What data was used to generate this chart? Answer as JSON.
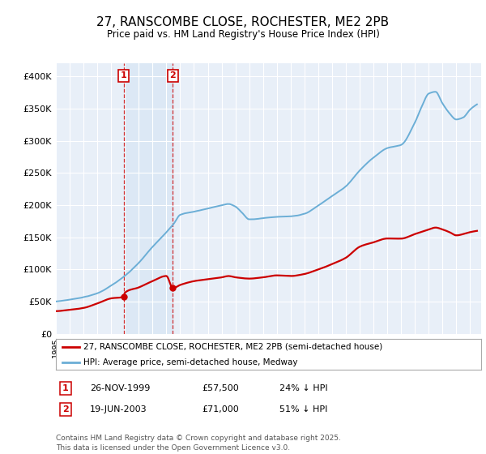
{
  "title": "27, RANSCOMBE CLOSE, ROCHESTER, ME2 2PB",
  "subtitle": "Price paid vs. HM Land Registry's House Price Index (HPI)",
  "ylabel_ticks": [
    "£0",
    "£50K",
    "£100K",
    "£150K",
    "£200K",
    "£250K",
    "£300K",
    "£350K",
    "£400K"
  ],
  "ytick_values": [
    0,
    50000,
    100000,
    150000,
    200000,
    250000,
    300000,
    350000,
    400000
  ],
  "ylim": [
    0,
    420000
  ],
  "xlim_start": 1995.0,
  "xlim_end": 2025.8,
  "hpi_color": "#6baed6",
  "price_color": "#cc0000",
  "marker1_date": 1999.9,
  "marker1_price": 57500,
  "marker2_date": 2003.47,
  "marker2_price": 71000,
  "legend_label1": "27, RANSCOMBE CLOSE, ROCHESTER, ME2 2PB (semi-detached house)",
  "legend_label2": "HPI: Average price, semi-detached house, Medway",
  "table_row1": [
    "1",
    "26-NOV-1999",
    "£57,500",
    "24% ↓ HPI"
  ],
  "table_row2": [
    "2",
    "19-JUN-2003",
    "£71,000",
    "51% ↓ HPI"
  ],
  "footer": "Contains HM Land Registry data © Crown copyright and database right 2025.\nThis data is licensed under the Open Government Licence v3.0.",
  "background_color": "#ffffff",
  "plot_bg_color": "#e8eff8",
  "grid_color": "#ffffff",
  "shade_color": "#dce8f5"
}
